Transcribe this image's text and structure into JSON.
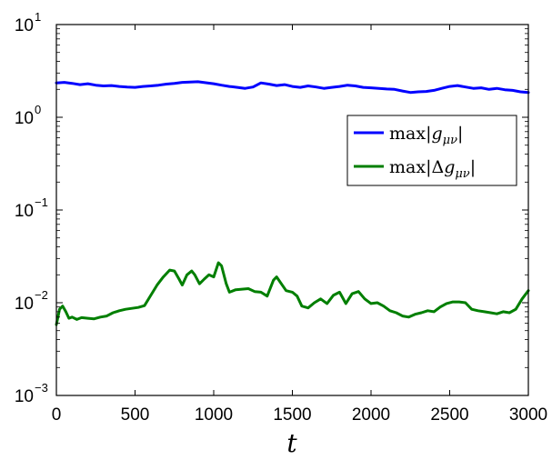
{
  "chart_data": {
    "type": "line",
    "title": "",
    "xlabel": "t",
    "ylabel": "",
    "xlim": [
      0,
      3000
    ],
    "ylim": [
      0.001,
      10
    ],
    "yscale": "log",
    "grid": false,
    "legend_position": "right",
    "x_ticks": [
      "0",
      "500",
      "1000",
      "1500",
      "2000",
      "2500",
      "3000"
    ],
    "y_ticks": [
      {
        "value": 10,
        "base": "10",
        "exp": "1"
      },
      {
        "value": 1,
        "base": "10",
        "exp": "0"
      },
      {
        "value": 0.1,
        "base": "10",
        "exp": "−1"
      },
      {
        "value": 0.01,
        "base": "10",
        "exp": "−2"
      },
      {
        "value": 0.001,
        "base": "10",
        "exp": "−3"
      }
    ],
    "series": [
      {
        "name": "max|g_{μν}|",
        "legend_main": "max",
        "legend_pre": "|",
        "legend_sym": "g",
        "legend_sub": "μν",
        "legend_post": "|",
        "color": "#0000ff",
        "x": [
          0,
          50,
          100,
          150,
          200,
          250,
          300,
          350,
          400,
          450,
          500,
          550,
          600,
          650,
          700,
          750,
          800,
          850,
          900,
          950,
          1000,
          1050,
          1100,
          1150,
          1200,
          1250,
          1300,
          1350,
          1400,
          1450,
          1500,
          1550,
          1600,
          1650,
          1700,
          1750,
          1800,
          1850,
          1900,
          1950,
          2000,
          2050,
          2100,
          2150,
          2200,
          2250,
          2300,
          2350,
          2400,
          2450,
          2500,
          2550,
          2600,
          2650,
          2700,
          2750,
          2800,
          2850,
          2900,
          2950,
          3000
        ],
        "y": [
          2.35,
          2.38,
          2.32,
          2.25,
          2.3,
          2.22,
          2.18,
          2.2,
          2.15,
          2.12,
          2.1,
          2.15,
          2.18,
          2.22,
          2.28,
          2.32,
          2.38,
          2.4,
          2.42,
          2.36,
          2.3,
          2.22,
          2.15,
          2.1,
          2.05,
          2.12,
          2.35,
          2.28,
          2.2,
          2.25,
          2.15,
          2.1,
          2.18,
          2.12,
          2.05,
          2.1,
          2.15,
          2.22,
          2.18,
          2.1,
          2.08,
          2.05,
          2.02,
          2.0,
          1.92,
          1.85,
          1.88,
          1.9,
          1.95,
          2.05,
          2.15,
          2.2,
          2.12,
          2.05,
          2.08,
          2.0,
          2.05,
          1.98,
          1.95,
          1.88,
          1.85
        ]
      },
      {
        "name": "max|Δg_{μν}|",
        "legend_main": "max",
        "legend_pre": "|Δ",
        "legend_sym": "g",
        "legend_sub": "μν",
        "legend_post": "|",
        "color": "#007f00",
        "x": [
          0,
          20,
          40,
          60,
          80,
          100,
          130,
          160,
          200,
          240,
          280,
          320,
          360,
          400,
          440,
          480,
          520,
          560,
          600,
          640,
          680,
          720,
          750,
          780,
          800,
          830,
          860,
          880,
          910,
          940,
          970,
          1000,
          1030,
          1050,
          1080,
          1100,
          1140,
          1180,
          1220,
          1260,
          1300,
          1340,
          1380,
          1400,
          1430,
          1460,
          1500,
          1530,
          1560,
          1600,
          1640,
          1680,
          1720,
          1760,
          1800,
          1840,
          1880,
          1920,
          1960,
          2000,
          2040,
          2080,
          2120,
          2160,
          2200,
          2240,
          2280,
          2320,
          2360,
          2400,
          2440,
          2480,
          2520,
          2560,
          2600,
          2640,
          2680,
          2720,
          2760,
          2800,
          2840,
          2880,
          2920,
          2960,
          3000
        ],
        "y": [
          0.0058,
          0.0085,
          0.0092,
          0.008,
          0.0068,
          0.007,
          0.0066,
          0.0069,
          0.0068,
          0.0067,
          0.007,
          0.0072,
          0.0078,
          0.0082,
          0.0085,
          0.0087,
          0.0089,
          0.0093,
          0.012,
          0.0155,
          0.019,
          0.0225,
          0.022,
          0.018,
          0.0155,
          0.02,
          0.022,
          0.02,
          0.016,
          0.018,
          0.02,
          0.019,
          0.027,
          0.025,
          0.016,
          0.013,
          0.0138,
          0.014,
          0.0142,
          0.0132,
          0.013,
          0.0118,
          0.0175,
          0.019,
          0.016,
          0.0135,
          0.013,
          0.0118,
          0.0092,
          0.0088,
          0.01,
          0.011,
          0.0098,
          0.012,
          0.013,
          0.0098,
          0.0125,
          0.0132,
          0.011,
          0.0098,
          0.01,
          0.0092,
          0.0082,
          0.0078,
          0.0072,
          0.007,
          0.0075,
          0.0078,
          0.0082,
          0.008,
          0.009,
          0.0098,
          0.0102,
          0.0102,
          0.01,
          0.0085,
          0.0082,
          0.008,
          0.0078,
          0.0076,
          0.008,
          0.0078,
          0.0085,
          0.011,
          0.0135
        ]
      }
    ]
  }
}
